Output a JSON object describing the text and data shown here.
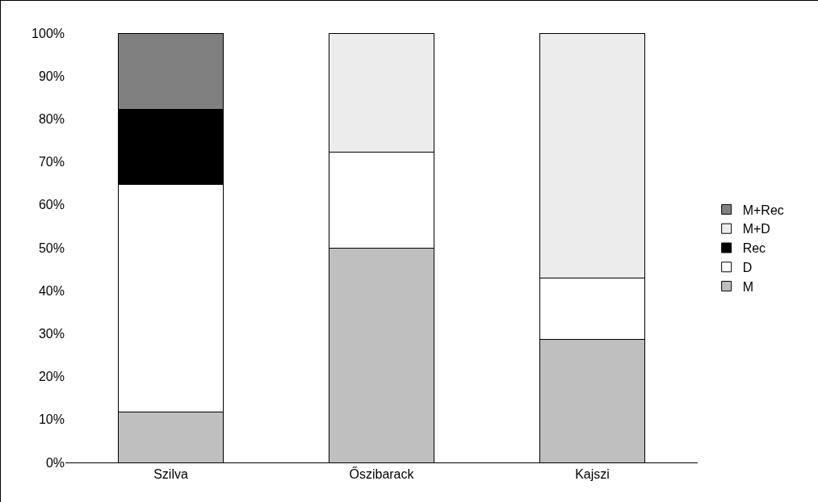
{
  "chart_data": {
    "type": "bar",
    "stacked": true,
    "categories": [
      "Szilva",
      "Őszibarack",
      "Kajszi"
    ],
    "series": [
      {
        "name": "M",
        "color": "#bfbfbf",
        "values": [
          11.8,
          50,
          28.6
        ]
      },
      {
        "name": "D",
        "color": "#ffffff",
        "values": [
          52.9,
          22.2,
          14.3
        ]
      },
      {
        "name": "Rec",
        "color": "#000000",
        "values": [
          17.6,
          null,
          null
        ]
      },
      {
        "name": "M+D",
        "color": "#ececec",
        "values": [
          null,
          27.8,
          57.1
        ]
      },
      {
        "name": "M+Rec",
        "color": "#808080",
        "values": [
          17.7,
          null,
          null
        ]
      }
    ],
    "ylim": [
      0,
      100
    ],
    "yticks": [
      {
        "value": 0,
        "label": "0%"
      },
      {
        "value": 10,
        "label": "10%"
      },
      {
        "value": 20,
        "label": "20%"
      },
      {
        "value": 30,
        "label": "30%"
      },
      {
        "value": 40,
        "label": "40%"
      },
      {
        "value": 50,
        "label": "50%"
      },
      {
        "value": 60,
        "label": "60%"
      },
      {
        "value": 70,
        "label": "70%"
      },
      {
        "value": 80,
        "label": "80%"
      },
      {
        "value": 90,
        "label": "90%"
      },
      {
        "value": 100,
        "label": "100%"
      }
    ],
    "grid": false,
    "legend": "right"
  }
}
